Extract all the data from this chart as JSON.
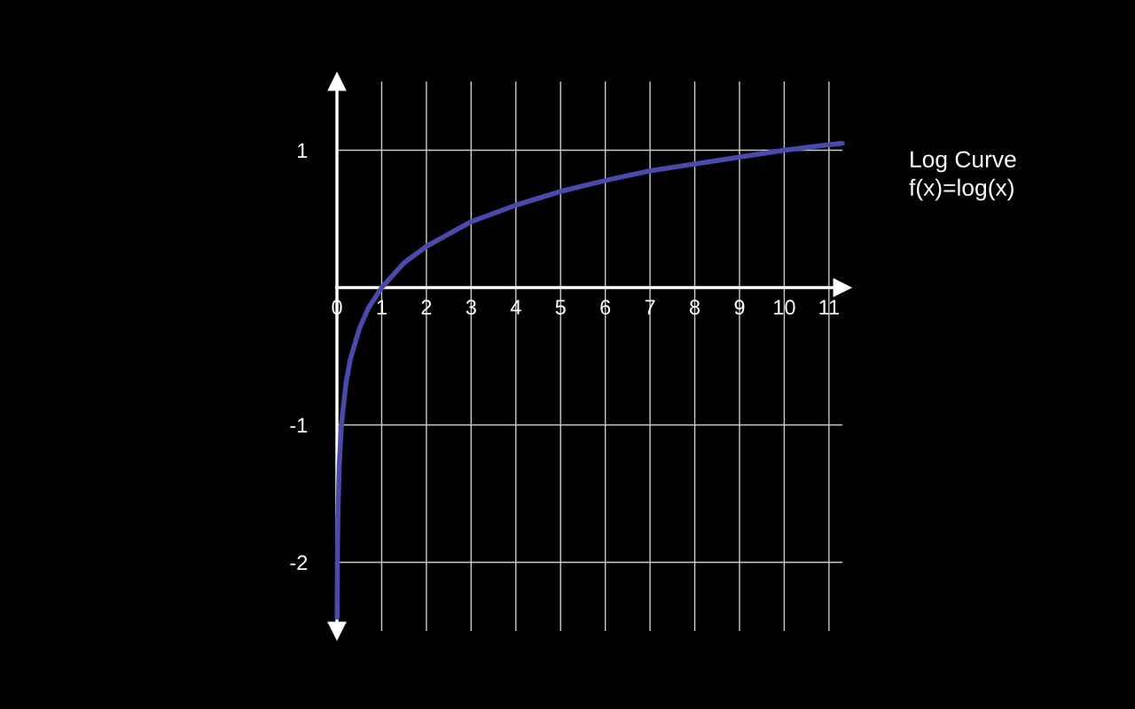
{
  "chart_data": {
    "type": "line",
    "annotations": [
      "Log Curve",
      "f(x)=log(x)"
    ],
    "series": [
      {
        "color": "#4a4aac",
        "x": [
          0.004,
          0.01,
          0.02,
          0.05,
          0.1,
          0.2,
          0.3,
          0.5,
          0.7,
          1,
          1.5,
          2,
          3,
          4,
          5,
          6,
          7,
          8,
          9,
          10,
          11,
          11.3
        ],
        "values": [
          -2.4,
          -2,
          -1.7,
          -1.3,
          -1,
          -0.7,
          -0.52,
          -0.3,
          -0.15,
          0,
          0.18,
          0.3,
          0.48,
          0.6,
          0.7,
          0.78,
          0.85,
          0.9,
          0.95,
          1,
          1.04,
          1.05
        ]
      }
    ],
    "xlim": [
      0,
      11.3
    ],
    "ylim": [
      -2.5,
      1.5
    ],
    "xticks": [
      0,
      1,
      2,
      3,
      4,
      5,
      6,
      7,
      8,
      9,
      10,
      11
    ],
    "yticks": [
      -2,
      -1,
      1
    ],
    "grid": true,
    "marker": "none",
    "line_style": "solid"
  }
}
